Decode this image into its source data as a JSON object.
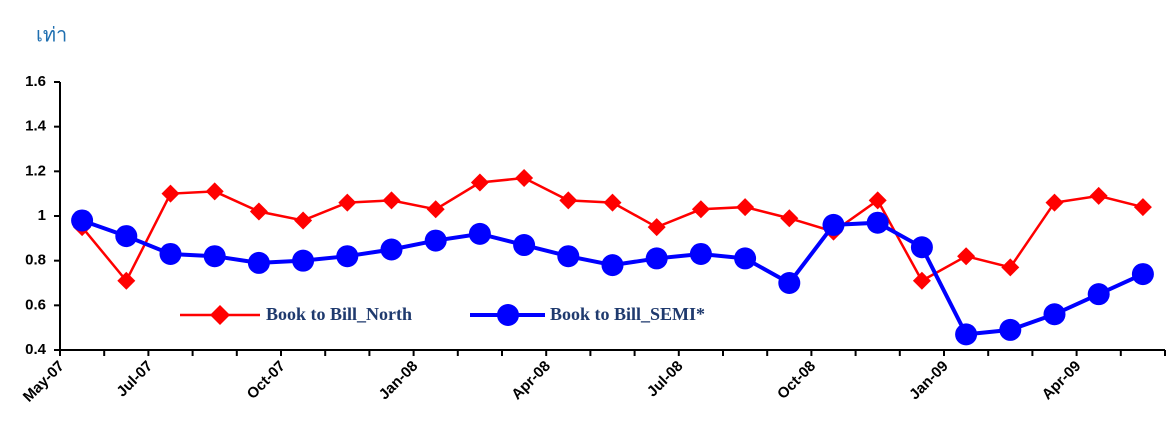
{
  "chart_data": {
    "type": "line",
    "y_label": "เท่า",
    "categories": [
      "May-07",
      null,
      "Jul-07",
      null,
      null,
      "Oct-07",
      null,
      null,
      "Jan-08",
      null,
      null,
      "Apr-08",
      null,
      null,
      "Jul-08",
      null,
      null,
      "Oct-08",
      null,
      null,
      "Jan-09",
      null,
      null,
      "Apr-09",
      null
    ],
    "series": [
      {
        "name": "Book to Bill_North",
        "color": "#ff0000",
        "marker": "diamond",
        "values": [
          0.95,
          0.71,
          1.1,
          1.11,
          1.02,
          0.98,
          1.06,
          1.07,
          1.03,
          1.15,
          1.17,
          1.07,
          1.06,
          0.95,
          1.03,
          1.04,
          0.99,
          0.93,
          1.07,
          0.71,
          0.82,
          0.77,
          1.06,
          1.09,
          1.04
        ]
      },
      {
        "name": "Book to Bill_SEMI*",
        "color": "#0000ff",
        "marker": "circle",
        "values": [
          0.98,
          0.91,
          0.83,
          0.82,
          0.79,
          0.8,
          0.82,
          0.85,
          0.89,
          0.92,
          0.87,
          0.82,
          0.78,
          0.81,
          0.83,
          0.81,
          0.7,
          0.96,
          0.97,
          0.86,
          0.47,
          0.49,
          0.56,
          0.65,
          0.74
        ]
      }
    ],
    "ylim": [
      0.4,
      1.6
    ],
    "yticks": [
      0.4,
      0.6,
      0.8,
      1,
      1.2,
      1.4,
      1.6
    ],
    "grid": false
  }
}
